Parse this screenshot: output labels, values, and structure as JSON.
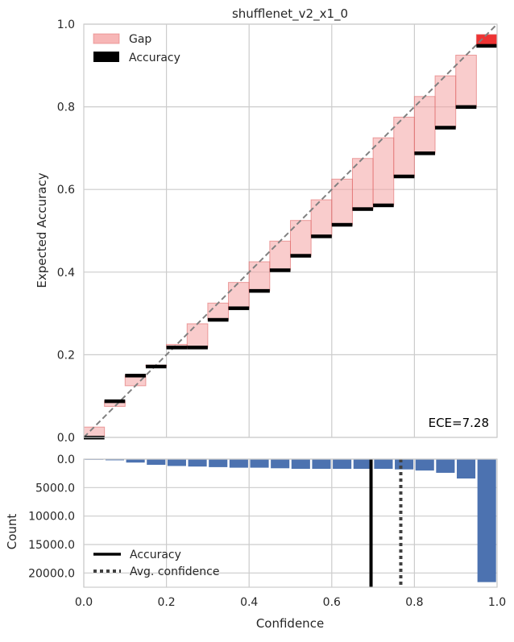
{
  "chart_data": [
    {
      "type": "bar",
      "title": "shufflenet_v2_x1_0",
      "ylabel": "Expected Accuracy",
      "xlim": [
        0,
        1
      ],
      "ylim": [
        0,
        1
      ],
      "xticks": [
        0.2,
        0.4,
        0.6,
        0.8,
        1.0
      ],
      "yticks": [
        "0.0",
        "0.2",
        "0.4",
        "0.6",
        "0.8",
        "1.0"
      ],
      "bin_width": 0.05,
      "bin_centers": [
        0.025,
        0.075,
        0.125,
        0.175,
        0.225,
        0.275,
        0.325,
        0.375,
        0.425,
        0.475,
        0.525,
        0.575,
        0.625,
        0.675,
        0.725,
        0.775,
        0.825,
        0.875,
        0.925,
        0.975
      ],
      "accuracy": [
        0.0,
        0.088,
        0.15,
        0.172,
        0.218,
        0.218,
        0.285,
        0.313,
        0.355,
        0.405,
        0.44,
        0.487,
        0.515,
        0.553,
        0.562,
        0.632,
        0.688,
        0.75,
        0.8,
        0.948
      ],
      "legend": [
        {
          "label": "Gap",
          "color": "#f7b6b6"
        },
        {
          "label": "Accuracy",
          "color": "#000000"
        }
      ],
      "annotation": "ECE=7.28",
      "gap_color": "#f4a3a3",
      "gap_edge_color": "#e06868",
      "highlight_color": "#ee3333",
      "diagonal_color": "#808080",
      "grid": true
    },
    {
      "type": "bar",
      "xlabel": "Confidence",
      "ylabel": "Count",
      "xlim": [
        0,
        1
      ],
      "ylim": [
        0,
        22500
      ],
      "xticks": [
        "0.0",
        "0.2",
        "0.4",
        "0.6",
        "0.8",
        "1.0"
      ],
      "yticks": [
        "0.0",
        "5000.0",
        "10000.0",
        "15000.0",
        "20000.0"
      ],
      "bin_centers": [
        0.025,
        0.075,
        0.125,
        0.175,
        0.225,
        0.275,
        0.325,
        0.375,
        0.425,
        0.475,
        0.525,
        0.575,
        0.625,
        0.675,
        0.725,
        0.775,
        0.825,
        0.875,
        0.925,
        0.975
      ],
      "counts": [
        0,
        200,
        600,
        1000,
        1200,
        1300,
        1400,
        1500,
        1500,
        1600,
        1700,
        1700,
        1700,
        1700,
        1700,
        1800,
        2000,
        2400,
        3400,
        21600
      ],
      "accuracy_line": 0.695,
      "avg_confidence_line": 0.767,
      "legend": [
        {
          "label": "Accuracy",
          "style": "solid"
        },
        {
          "label": "Avg. confidence",
          "style": "dotted"
        }
      ],
      "bar_color": "#4c72b0",
      "grid": true
    }
  ]
}
